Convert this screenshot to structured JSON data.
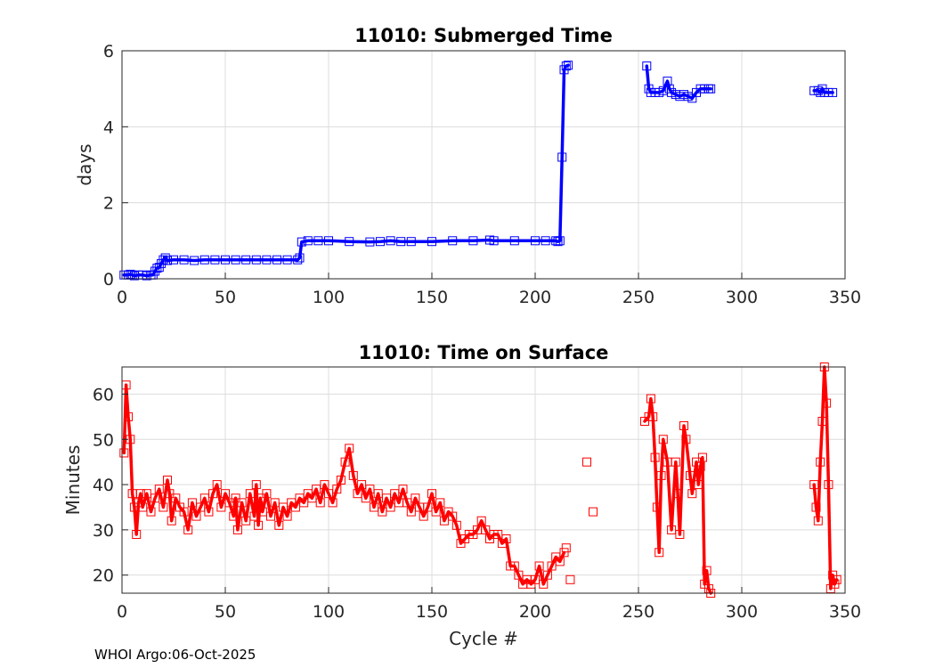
{
  "footer": "WHOI Argo:06-Oct-2025",
  "chart_data": [
    {
      "type": "line",
      "title": "11010: Submerged Time",
      "xlabel": "",
      "ylabel": "days",
      "xlim": [
        0,
        350
      ],
      "ylim": [
        0,
        6
      ],
      "xticks": [
        0,
        50,
        100,
        150,
        200,
        250,
        300,
        350
      ],
      "yticks": [
        0,
        2,
        4,
        6
      ],
      "grid": true,
      "marker": "square",
      "color": "#0000ff",
      "series": [
        {
          "segments": [
            [
              [
                1,
                0.1
              ],
              [
                3,
                0.1
              ],
              [
                4,
                0.12
              ],
              [
                5,
                0.1
              ],
              [
                6,
                0.08
              ],
              [
                8,
                0.1
              ],
              [
                10,
                0.1
              ],
              [
                12,
                0.08
              ],
              [
                14,
                0.1
              ],
              [
                15,
                0.1
              ],
              [
                16,
                0.2
              ],
              [
                17,
                0.28
              ],
              [
                18,
                0.3
              ],
              [
                19,
                0.4
              ],
              [
                20,
                0.5
              ],
              [
                21,
                0.55
              ],
              [
                22,
                0.48
              ],
              [
                25,
                0.5
              ],
              [
                30,
                0.5
              ],
              [
                35,
                0.48
              ],
              [
                40,
                0.5
              ],
              [
                45,
                0.5
              ],
              [
                50,
                0.5
              ],
              [
                55,
                0.5
              ],
              [
                60,
                0.5
              ],
              [
                65,
                0.5
              ],
              [
                70,
                0.5
              ],
              [
                75,
                0.5
              ],
              [
                80,
                0.5
              ],
              [
                85,
                0.5
              ],
              [
                86,
                0.55
              ],
              [
                87,
                0.97
              ],
              [
                90,
                1.0
              ],
              [
                95,
                1.0
              ],
              [
                100,
                1.0
              ],
              [
                110,
                0.98
              ],
              [
                120,
                0.97
              ],
              [
                125,
                0.98
              ],
              [
                130,
                1.0
              ],
              [
                135,
                0.98
              ],
              [
                140,
                0.98
              ],
              [
                150,
                0.98
              ],
              [
                160,
                1.0
              ],
              [
                170,
                1.0
              ],
              [
                178,
                1.02
              ],
              [
                180,
                1.0
              ],
              [
                190,
                1.0
              ],
              [
                200,
                1.0
              ],
              [
                205,
                1.0
              ],
              [
                210,
                1.0
              ],
              [
                211,
                0.98
              ],
              [
                212,
                1.0
              ],
              [
                213,
                3.2
              ],
              [
                214,
                5.5
              ],
              [
                215,
                5.6
              ],
              [
                216,
                5.62
              ]
            ],
            [
              [
                254,
                5.6
              ],
              [
                255,
                5.0
              ],
              [
                256,
                4.9
              ],
              [
                258,
                4.9
              ],
              [
                260,
                4.9
              ],
              [
                262,
                4.95
              ],
              [
                264,
                5.2
              ],
              [
                265,
                5.0
              ],
              [
                266,
                4.9
              ],
              [
                268,
                4.85
              ],
              [
                270,
                4.8
              ],
              [
                272,
                4.85
              ],
              [
                274,
                4.8
              ],
              [
                276,
                4.75
              ],
              [
                278,
                4.9
              ],
              [
                280,
                5.0
              ],
              [
                282,
                5.0
              ],
              [
                284,
                5.0
              ],
              [
                285,
                5.0
              ]
            ],
            [
              [
                335,
                4.95
              ],
              [
                337,
                4.95
              ],
              [
                338,
                4.9
              ],
              [
                339,
                5.0
              ],
              [
                340,
                4.9
              ],
              [
                342,
                4.9
              ],
              [
                344,
                4.9
              ]
            ]
          ]
        }
      ]
    },
    {
      "type": "line",
      "title": "11010: Time on Surface",
      "xlabel": "Cycle #",
      "ylabel": "Minutes",
      "xlim": [
        0,
        350
      ],
      "ylim": [
        16,
        66
      ],
      "xticks": [
        0,
        50,
        100,
        150,
        200,
        250,
        300,
        350
      ],
      "yticks": [
        20,
        30,
        40,
        50,
        60
      ],
      "grid": true,
      "marker": "square",
      "color": "#ff0000",
      "series": [
        {
          "segments": [
            [
              [
                1,
                47
              ],
              [
                2,
                62
              ],
              [
                3,
                55
              ],
              [
                4,
                50
              ],
              [
                5,
                38
              ],
              [
                6,
                35
              ],
              [
                7,
                29
              ],
              [
                8,
                36
              ],
              [
                9,
                38
              ],
              [
                10,
                35
              ],
              [
                12,
                38
              ],
              [
                14,
                34
              ],
              [
                16,
                37
              ],
              [
                18,
                39
              ],
              [
                20,
                35
              ],
              [
                22,
                41
              ],
              [
                23,
                38
              ],
              [
                24,
                32
              ],
              [
                26,
                37
              ],
              [
                28,
                35
              ],
              [
                30,
                34
              ],
              [
                32,
                30
              ],
              [
                34,
                36
              ],
              [
                36,
                33
              ],
              [
                38,
                35
              ],
              [
                40,
                37
              ],
              [
                42,
                34
              ],
              [
                44,
                38
              ],
              [
                46,
                40
              ],
              [
                48,
                35
              ],
              [
                50,
                38
              ],
              [
                52,
                36
              ],
              [
                54,
                33
              ],
              [
                55,
                37
              ],
              [
                56,
                30
              ],
              [
                58,
                36
              ],
              [
                60,
                32
              ],
              [
                62,
                38
              ],
              [
                64,
                33
              ],
              [
                65,
                40
              ],
              [
                66,
                31
              ],
              [
                67,
                37
              ],
              [
                68,
                34
              ],
              [
                70,
                38
              ],
              [
                72,
                33
              ],
              [
                74,
                36
              ],
              [
                76,
                31
              ],
              [
                78,
                35
              ],
              [
                80,
                33
              ],
              [
                82,
                36
              ],
              [
                84,
                35
              ],
              [
                86,
                37
              ],
              [
                88,
                36
              ],
              [
                90,
                38
              ],
              [
                92,
                37
              ],
              [
                94,
                39
              ],
              [
                96,
                36
              ],
              [
                98,
                40
              ],
              [
                100,
                38
              ],
              [
                102,
                36
              ],
              [
                104,
                39
              ],
              [
                106,
                41
              ],
              [
                108,
                45
              ],
              [
                110,
                48
              ],
              [
                112,
                42
              ],
              [
                114,
                38
              ],
              [
                116,
                40
              ],
              [
                118,
                37
              ],
              [
                120,
                39
              ],
              [
                122,
                35
              ],
              [
                124,
                38
              ],
              [
                126,
                34
              ],
              [
                128,
                37
              ],
              [
                130,
                35
              ],
              [
                132,
                38
              ],
              [
                134,
                36
              ],
              [
                136,
                39
              ],
              [
                138,
                36
              ],
              [
                140,
                34
              ],
              [
                142,
                37
              ],
              [
                144,
                35
              ],
              [
                146,
                33
              ],
              [
                148,
                35
              ],
              [
                150,
                38
              ],
              [
                152,
                34
              ],
              [
                154,
                36
              ],
              [
                156,
                32
              ],
              [
                158,
                34
              ],
              [
                160,
                33
              ],
              [
                162,
                31
              ],
              [
                164,
                27
              ],
              [
                166,
                28
              ],
              [
                168,
                29
              ],
              [
                170,
                29
              ],
              [
                172,
                30
              ],
              [
                174,
                32
              ],
              [
                176,
                30
              ],
              [
                178,
                28
              ],
              [
                180,
                29
              ],
              [
                182,
                29
              ],
              [
                184,
                27
              ],
              [
                186,
                28
              ],
              [
                188,
                22
              ],
              [
                190,
                22
              ],
              [
                192,
                20
              ],
              [
                194,
                18
              ],
              [
                196,
                19
              ],
              [
                198,
                18
              ],
              [
                200,
                19
              ],
              [
                202,
                22
              ],
              [
                204,
                18
              ],
              [
                206,
                20
              ],
              [
                208,
                22
              ],
              [
                210,
                24
              ],
              [
                212,
                23
              ],
              [
                214,
                25
              ]
            ],
            [
              [
                215,
                26
              ]
            ],
            [
              [
                217,
                19
              ]
            ],
            [
              [
                225,
                45
              ]
            ],
            [
              [
                228,
                34
              ]
            ],
            [
              [
                253,
                54
              ],
              [
                255,
                55
              ],
              [
                256,
                59
              ],
              [
                257,
                55
              ],
              [
                258,
                46
              ],
              [
                259,
                35
              ],
              [
                260,
                25
              ],
              [
                261,
                42
              ],
              [
                262,
                50
              ],
              [
                264,
                45
              ],
              [
                266,
                30
              ],
              [
                268,
                45
              ],
              [
                269,
                38
              ],
              [
                270,
                29
              ],
              [
                272,
                53
              ],
              [
                273,
                50
              ],
              [
                275,
                42
              ],
              [
                276,
                38
              ],
              [
                278,
                45
              ],
              [
                279,
                40
              ],
              [
                280,
                44
              ],
              [
                281,
                46
              ],
              [
                282,
                18
              ],
              [
                283,
                21
              ],
              [
                284,
                17
              ],
              [
                285,
                16
              ]
            ],
            [
              [
                335,
                40
              ],
              [
                336,
                35
              ],
              [
                337,
                32
              ],
              [
                338,
                45
              ],
              [
                339,
                54
              ],
              [
                340,
                66
              ],
              [
                341,
                58
              ],
              [
                342,
                40
              ],
              [
                343,
                17
              ],
              [
                344,
                20
              ],
              [
                345,
                18
              ],
              [
                346,
                19
              ]
            ]
          ]
        }
      ]
    }
  ]
}
